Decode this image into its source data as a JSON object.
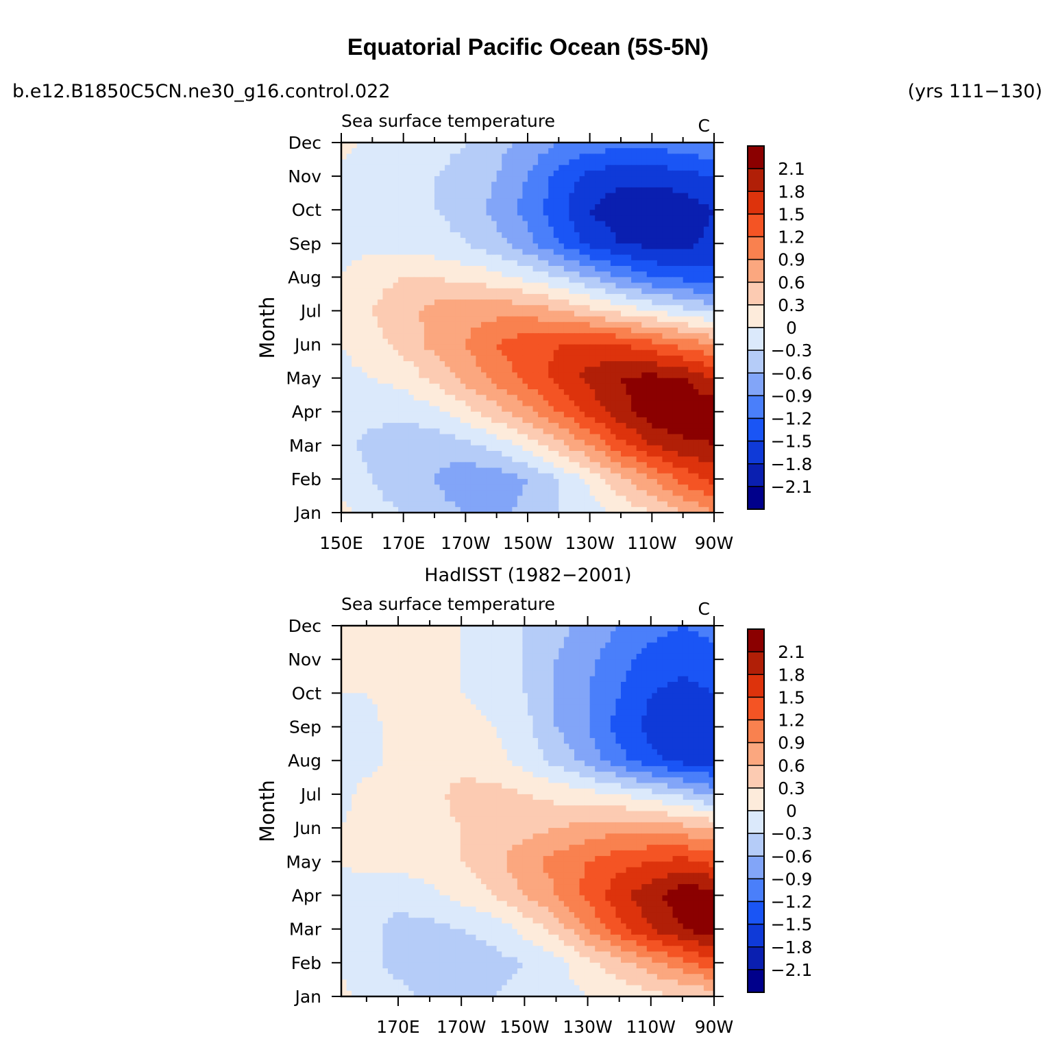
{
  "header": {
    "title": "Equatorial Pacific Ocean (5S-5N)",
    "case": "b.e12.B1850C5CN.ne30_g16.control.022",
    "years": "(yrs 111−130)"
  },
  "colorbar": {
    "levels": [
      -2.4,
      -2.1,
      -1.8,
      -1.5,
      -1.2,
      -0.9,
      -0.6,
      -0.3,
      0,
      0.3,
      0.6,
      0.9,
      1.2,
      1.5,
      1.8,
      2.1,
      2.4
    ],
    "labels": [
      "2.1",
      "1.8",
      "1.5",
      "1.2",
      "0.9",
      "0.6",
      "0.3",
      "0",
      "−0.3",
      "−0.6",
      "−0.9",
      "−1.2",
      "−1.5",
      "−1.8",
      "−2.1"
    ],
    "colors": [
      "#00008b",
      "#0a1fb0",
      "#0f3ad8",
      "#1a55f5",
      "#4a7ffa",
      "#82a5f8",
      "#b5ccf8",
      "#dbe9fb",
      "#fdebdb",
      "#fccbb2",
      "#fba77f",
      "#f9814f",
      "#f45424",
      "#dd330c",
      "#b11f07",
      "#8b0000"
    ]
  },
  "chart_data": [
    {
      "type": "heatmap",
      "title": "Sea surface temperature",
      "units": "C",
      "ylabel": "Month",
      "xlabel": "",
      "x_ticks": [
        "150E",
        "170E",
        "170W",
        "150W",
        "130W",
        "110W",
        "90W"
      ],
      "x_tick_values": [
        150,
        170,
        190,
        210,
        230,
        250,
        270
      ],
      "xlim": [
        150,
        270
      ],
      "y": [
        "Jan",
        "Feb",
        "Mar",
        "Apr",
        "May",
        "Jun",
        "Jul",
        "Aug",
        "Sep",
        "Oct",
        "Nov",
        "Dec"
      ],
      "x": [
        150,
        160,
        170,
        180,
        190,
        200,
        210,
        220,
        230,
        240,
        250,
        260,
        270
      ],
      "z": [
        [
          0.1,
          -0.2,
          -0.3,
          -0.5,
          -0.6,
          -0.7,
          -0.5,
          -0.3,
          -0.2,
          0.1,
          0.3,
          0.6,
          0.9
        ],
        [
          -0.1,
          -0.3,
          -0.5,
          -0.6,
          -0.8,
          -0.8,
          -0.6,
          -0.3,
          0.1,
          0.5,
          0.9,
          1.3,
          1.6
        ],
        [
          -0.2,
          -0.4,
          -0.5,
          -0.5,
          -0.4,
          -0.2,
          0.1,
          0.5,
          0.9,
          1.4,
          1.8,
          2.0,
          2.1
        ],
        [
          -0.2,
          -0.2,
          -0.2,
          -0.1,
          0.2,
          0.5,
          0.8,
          1.2,
          1.6,
          2.0,
          2.3,
          2.4,
          2.3
        ],
        [
          -0.1,
          0.0,
          0.1,
          0.4,
          0.7,
          1.0,
          1.3,
          1.6,
          1.9,
          2.1,
          2.2,
          2.1,
          1.8
        ],
        [
          0.0,
          0.2,
          0.4,
          0.7,
          0.9,
          1.2,
          1.4,
          1.5,
          1.6,
          1.5,
          1.3,
          1.1,
          0.9
        ],
        [
          0.1,
          0.3,
          0.5,
          0.7,
          0.8,
          0.8,
          0.8,
          0.6,
          0.4,
          0.2,
          0.0,
          -0.2,
          -0.4
        ],
        [
          0.0,
          0.2,
          0.3,
          0.3,
          0.2,
          0.1,
          -0.1,
          -0.3,
          -0.6,
          -0.9,
          -1.2,
          -1.3,
          -1.4
        ],
        [
          -0.1,
          -0.1,
          -0.2,
          -0.2,
          -0.3,
          -0.5,
          -0.8,
          -1.2,
          -1.6,
          -1.8,
          -1.9,
          -1.9,
          -1.7
        ],
        [
          -0.1,
          -0.2,
          -0.2,
          -0.3,
          -0.4,
          -0.7,
          -1.0,
          -1.4,
          -1.8,
          -2.0,
          -2.1,
          -2.0,
          -1.8
        ],
        [
          -0.1,
          -0.2,
          -0.2,
          -0.3,
          -0.4,
          -0.6,
          -0.9,
          -1.3,
          -1.6,
          -1.7,
          -1.7,
          -1.6,
          -1.5
        ],
        [
          0.1,
          -0.1,
          -0.1,
          -0.2,
          -0.3,
          -0.5,
          -0.7,
          -0.9,
          -1.0,
          -1.1,
          -1.1,
          -1.0,
          -0.9
        ]
      ]
    },
    {
      "type": "heatmap",
      "title": "Sea surface temperature",
      "subtitle": "HadISST (1982−2001)",
      "units": "C",
      "ylabel": "Month",
      "xlabel": "",
      "x_ticks": [
        "170E",
        "170W",
        "150W",
        "130W",
        "110W",
        "90W"
      ],
      "x_tick_values": [
        170,
        190,
        210,
        230,
        250,
        270
      ],
      "xlim": [
        152,
        270
      ],
      "y": [
        "Jan",
        "Feb",
        "Mar",
        "Apr",
        "May",
        "Jun",
        "Jul",
        "Aug",
        "Sep",
        "Oct",
        "Nov",
        "Dec"
      ],
      "x": [
        152,
        160,
        170,
        180,
        190,
        200,
        210,
        220,
        230,
        240,
        250,
        260,
        270
      ],
      "z": [
        [
          0.1,
          -0.1,
          -0.2,
          -0.4,
          -0.4,
          -0.3,
          -0.2,
          -0.1,
          0.0,
          0.1,
          0.2,
          0.3,
          0.4
        ],
        [
          -0.1,
          -0.2,
          -0.4,
          -0.5,
          -0.5,
          -0.4,
          -0.3,
          -0.1,
          0.2,
          0.5,
          0.8,
          1.1,
          1.4
        ],
        [
          -0.1,
          -0.2,
          -0.4,
          -0.4,
          -0.3,
          -0.2,
          0.1,
          0.4,
          0.9,
          1.4,
          1.8,
          2.1,
          2.3
        ],
        [
          -0.1,
          -0.2,
          -0.2,
          -0.1,
          0.1,
          0.3,
          0.6,
          0.9,
          1.3,
          1.7,
          2.0,
          2.3,
          2.3
        ],
        [
          0.0,
          0.1,
          0.1,
          0.2,
          0.3,
          0.5,
          0.8,
          1.0,
          1.2,
          1.4,
          1.5,
          1.6,
          1.4
        ],
        [
          0.0,
          0.1,
          0.1,
          0.2,
          0.3,
          0.4,
          0.5,
          0.6,
          0.7,
          0.8,
          0.8,
          0.7,
          0.6
        ],
        [
          -0.1,
          0.1,
          0.1,
          0.2,
          0.4,
          0.4,
          0.3,
          0.2,
          0.1,
          0.0,
          -0.2,
          -0.4,
          -0.7
        ],
        [
          -0.2,
          -0.1,
          0.1,
          0.1,
          0.2,
          0.1,
          -0.1,
          -0.4,
          -0.7,
          -1.1,
          -1.4,
          -1.6,
          -1.6
        ],
        [
          -0.1,
          -0.1,
          0.1,
          0.3,
          0.1,
          0.0,
          -0.2,
          -0.6,
          -0.9,
          -1.3,
          -1.6,
          -1.8,
          -1.6
        ],
        [
          0.0,
          0.0,
          0.1,
          0.1,
          0.0,
          -0.1,
          -0.3,
          -0.6,
          -0.9,
          -1.2,
          -1.5,
          -1.6,
          -1.5
        ],
        [
          0.0,
          0.1,
          0.1,
          0.1,
          0.0,
          -0.1,
          -0.3,
          -0.6,
          -0.8,
          -1.1,
          -1.3,
          -1.4,
          -1.3
        ],
        [
          0.0,
          0.1,
          0.1,
          0.1,
          0.0,
          -0.1,
          -0.3,
          -0.5,
          -0.7,
          -0.9,
          -1.1,
          -1.2,
          -1.1
        ]
      ]
    }
  ]
}
